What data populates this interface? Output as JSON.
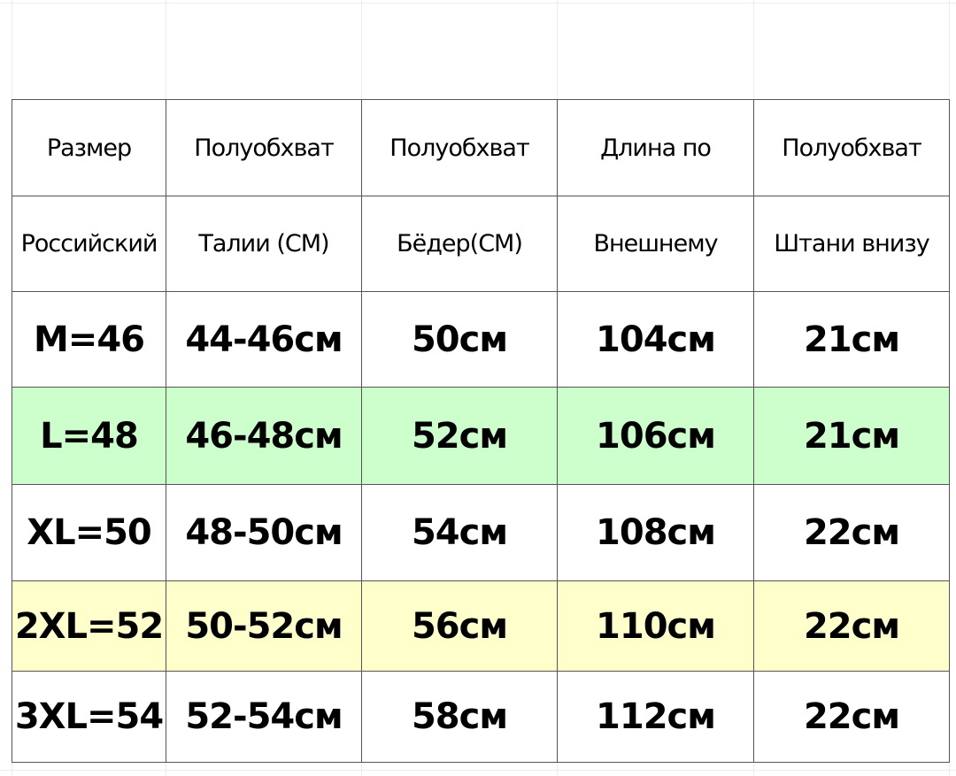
{
  "colors": {
    "green_row": "#ccffcc",
    "yellow_row": "#ffffcc",
    "border": "#555555"
  },
  "header_row1": [
    "Размер",
    "Полуобхват",
    "Полуобхват",
    "Длина по",
    "Полуобхват"
  ],
  "header_row2": [
    "Российский",
    "Талии (СМ)",
    "Бёдер(СМ)",
    "Внешнему",
    "Штани внизу"
  ],
  "rows": [
    {
      "highlight": "none",
      "cells": [
        "M=46",
        "44-46см",
        "50см",
        "104см",
        "21см"
      ]
    },
    {
      "highlight": "green",
      "cells": [
        "L=48",
        "46-48см",
        "52см",
        "106см",
        "21см"
      ]
    },
    {
      "highlight": "none",
      "cells": [
        "XL=50",
        "48-50см",
        "54см",
        "108см",
        "22см"
      ]
    },
    {
      "highlight": "yellow",
      "cells": [
        "2XL=52",
        "50-52см",
        "56см",
        "110см",
        "22см"
      ]
    },
    {
      "highlight": "none",
      "cells": [
        "3XL=54",
        "52-54см",
        "58см",
        "112см",
        "22см"
      ]
    }
  ]
}
